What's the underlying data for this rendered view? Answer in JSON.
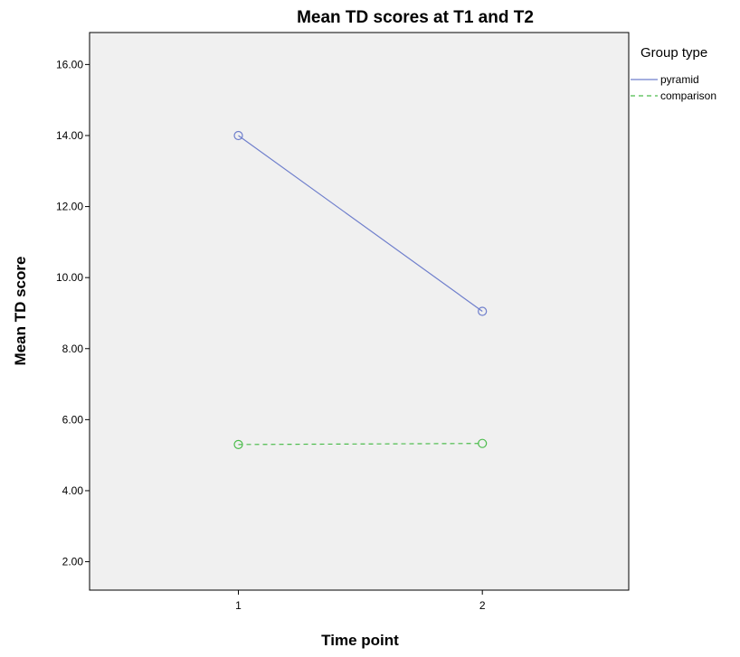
{
  "chart_data": {
    "type": "line",
    "title": "Mean TD scores at T1 and T2",
    "xlabel": "Time point",
    "ylabel": "Mean TD score",
    "x": [
      1,
      2
    ],
    "x_tick_labels": [
      "1",
      "2"
    ],
    "y_ticks": [
      2,
      4,
      6,
      8,
      10,
      12,
      14,
      16
    ],
    "y_tick_labels": [
      "2.00",
      "4.00",
      "6.00",
      "8.00",
      "10.00",
      "12.00",
      "14.00",
      "16.00"
    ],
    "ylim": [
      1.2,
      16.9
    ],
    "xlim": [
      0.39,
      2.6
    ],
    "grid": false,
    "legend": {
      "title": "Group type",
      "placement": "right-outside-top"
    },
    "series": [
      {
        "name": "pyramid",
        "values": [
          14.0,
          9.05
        ],
        "color": "#6f7fcc",
        "line_style": "solid",
        "marker": "open-circle"
      },
      {
        "name": "comparison",
        "values": [
          5.3,
          5.33
        ],
        "color": "#4cbc4c",
        "line_style": "dashed",
        "marker": "open-circle"
      }
    ],
    "plot_background": "#f0f0f0"
  }
}
